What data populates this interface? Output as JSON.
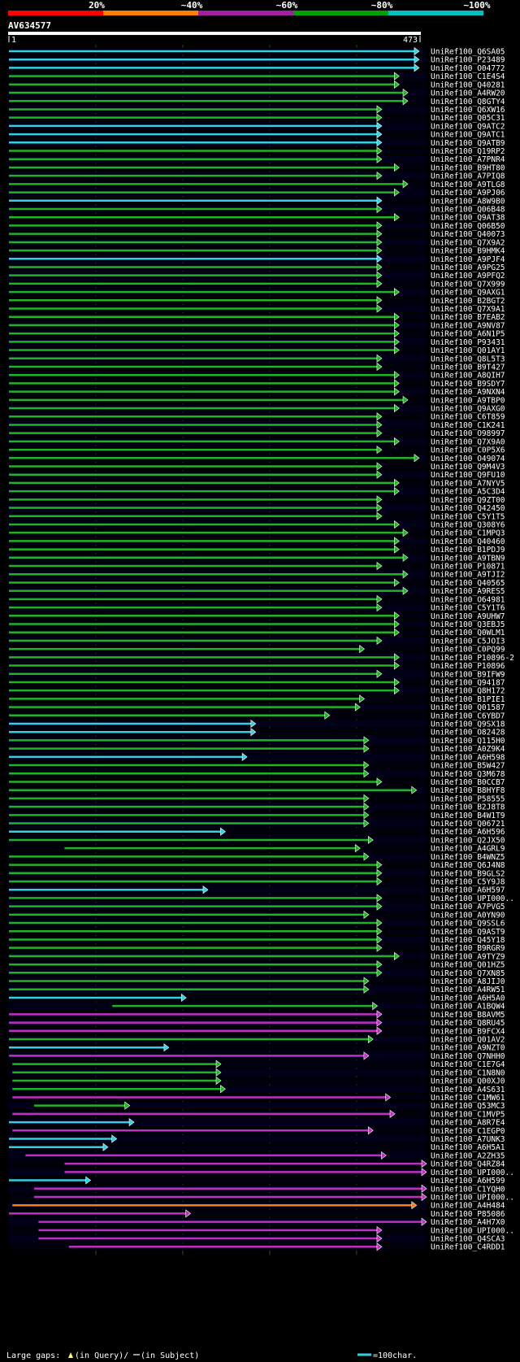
{
  "chart_data": {
    "type": "alignment-overview",
    "query_id": "AV634577",
    "query_start": "1",
    "query_end": "473",
    "query_length": 473,
    "identity_scale": [
      {
        "label": "20%",
        "color": "#ff0000"
      },
      {
        "label": "~40%",
        "color": "#ff7f00"
      },
      {
        "label": "~60%",
        "color": "#a020a0"
      },
      {
        "label": "~80%",
        "color": "#00a000"
      },
      {
        "label": "~100%",
        "color": "#00c0c0"
      }
    ],
    "hit_colors": {
      "cyan": "#33d0e0",
      "green": "#22b322",
      "magenta": "#c030c0",
      "orange": "#ff8000"
    },
    "hits": [
      {
        "name": "UniRef100_Q6SA05",
        "start": 1,
        "end": 473,
        "color": "cyan"
      },
      {
        "name": "UniRef100_P23489",
        "start": 1,
        "end": 473,
        "color": "cyan"
      },
      {
        "name": "UniRef100_O04772",
        "start": 1,
        "end": 473,
        "color": "cyan"
      },
      {
        "name": "UniRef100_C1E4S4",
        "start": 1,
        "end": 450,
        "color": "green"
      },
      {
        "name": "UniRef100_Q40281",
        "start": 1,
        "end": 450,
        "color": "green"
      },
      {
        "name": "UniRef100_A4RW20",
        "start": 1,
        "end": 460,
        "color": "green"
      },
      {
        "name": "UniRef100_Q8GTY4",
        "start": 1,
        "end": 460,
        "color": "green"
      },
      {
        "name": "UniRef100_Q6XW16",
        "start": 1,
        "end": 430,
        "color": "green"
      },
      {
        "name": "UniRef100_Q05C31",
        "start": 1,
        "end": 430,
        "color": "green"
      },
      {
        "name": "UniRef100_Q9ATC2",
        "start": 1,
        "end": 430,
        "color": "cyan"
      },
      {
        "name": "UniRef100_Q9ATC1",
        "start": 1,
        "end": 430,
        "color": "cyan"
      },
      {
        "name": "UniRef100_Q9ATB9",
        "start": 1,
        "end": 430,
        "color": "cyan"
      },
      {
        "name": "UniRef100_Q19RP2",
        "start": 1,
        "end": 430,
        "color": "green"
      },
      {
        "name": "UniRef100_A7PNR4",
        "start": 1,
        "end": 430,
        "color": "green"
      },
      {
        "name": "UniRef100_B9HT80",
        "start": 1,
        "end": 450,
        "color": "green"
      },
      {
        "name": "UniRef100_A7PIQ8",
        "start": 1,
        "end": 430,
        "color": "green"
      },
      {
        "name": "UniRef100_A9TLG8",
        "start": 1,
        "end": 460,
        "color": "green"
      },
      {
        "name": "UniRef100_A9PJ06",
        "start": 1,
        "end": 450,
        "color": "green"
      },
      {
        "name": "UniRef100_A8W9B0",
        "start": 1,
        "end": 430,
        "color": "cyan"
      },
      {
        "name": "UniRef100_Q06B48",
        "start": 1,
        "end": 430,
        "color": "green"
      },
      {
        "name": "UniRef100_Q9AT38",
        "start": 1,
        "end": 450,
        "color": "green"
      },
      {
        "name": "UniRef100_Q06B50",
        "start": 1,
        "end": 430,
        "color": "green"
      },
      {
        "name": "UniRef100_Q40073",
        "start": 1,
        "end": 430,
        "color": "green"
      },
      {
        "name": "UniRef100_Q7X9A2",
        "start": 1,
        "end": 430,
        "color": "green"
      },
      {
        "name": "UniRef100_B9HMK4",
        "start": 1,
        "end": 430,
        "color": "green"
      },
      {
        "name": "UniRef100_A9PJF4",
        "start": 1,
        "end": 430,
        "color": "cyan"
      },
      {
        "name": "UniRef100_A9PG25",
        "start": 1,
        "end": 430,
        "color": "green"
      },
      {
        "name": "UniRef100_A9PFQ2",
        "start": 1,
        "end": 430,
        "color": "green"
      },
      {
        "name": "UniRef100_Q7X999",
        "start": 1,
        "end": 430,
        "color": "green"
      },
      {
        "name": "UniRef100_Q9AXG1",
        "start": 1,
        "end": 450,
        "color": "green"
      },
      {
        "name": "UniRef100_B2BGT2",
        "start": 1,
        "end": 430,
        "color": "green"
      },
      {
        "name": "UniRef100_Q7X9A1",
        "start": 1,
        "end": 430,
        "color": "green"
      },
      {
        "name": "UniRef100_B7EAB2",
        "start": 1,
        "end": 450,
        "color": "green"
      },
      {
        "name": "UniRef100_A9NV87",
        "start": 1,
        "end": 450,
        "color": "green"
      },
      {
        "name": "UniRef100_A6N1P5",
        "start": 1,
        "end": 450,
        "color": "green"
      },
      {
        "name": "UniRef100_P93431",
        "start": 1,
        "end": 450,
        "color": "green"
      },
      {
        "name": "UniRef100_Q01AY1",
        "start": 1,
        "end": 450,
        "color": "green"
      },
      {
        "name": "UniRef100_Q8L5T3",
        "start": 1,
        "end": 430,
        "color": "green"
      },
      {
        "name": "UniRef100_B9T427",
        "start": 1,
        "end": 430,
        "color": "green"
      },
      {
        "name": "UniRef100_A8QIH7",
        "start": 1,
        "end": 450,
        "color": "green"
      },
      {
        "name": "UniRef100_B9SDY7",
        "start": 1,
        "end": 450,
        "color": "green"
      },
      {
        "name": "UniRef100_A9NXN4",
        "start": 1,
        "end": 450,
        "color": "green"
      },
      {
        "name": "UniRef100_A9TBP0",
        "start": 1,
        "end": 460,
        "color": "green"
      },
      {
        "name": "UniRef100_Q9AXG0",
        "start": 1,
        "end": 450,
        "color": "green"
      },
      {
        "name": "UniRef100_C6T859",
        "start": 1,
        "end": 430,
        "color": "green"
      },
      {
        "name": "UniRef100_C1K241",
        "start": 1,
        "end": 430,
        "color": "green"
      },
      {
        "name": "UniRef100_O98997",
        "start": 1,
        "end": 430,
        "color": "green"
      },
      {
        "name": "UniRef100_Q7X9A0",
        "start": 1,
        "end": 450,
        "color": "green"
      },
      {
        "name": "UniRef100_C0P5X6",
        "start": 1,
        "end": 430,
        "color": "green"
      },
      {
        "name": "UniRef100_O49074",
        "start": 1,
        "end": 473,
        "color": "green"
      },
      {
        "name": "UniRef100_Q9M4V3",
        "start": 1,
        "end": 430,
        "color": "green"
      },
      {
        "name": "UniRef100_Q9FU10",
        "start": 1,
        "end": 430,
        "color": "green"
      },
      {
        "name": "UniRef100_A7NYV5",
        "start": 1,
        "end": 450,
        "color": "green"
      },
      {
        "name": "UniRef100_A5C3D4",
        "start": 1,
        "end": 450,
        "color": "green"
      },
      {
        "name": "UniRef100_Q9ZT00",
        "start": 1,
        "end": 430,
        "color": "green"
      },
      {
        "name": "UniRef100_Q42450",
        "start": 1,
        "end": 430,
        "color": "green"
      },
      {
        "name": "UniRef100_C5Y1T5",
        "start": 1,
        "end": 430,
        "color": "green"
      },
      {
        "name": "UniRef100_Q308Y6",
        "start": 1,
        "end": 450,
        "color": "green"
      },
      {
        "name": "UniRef100_C1MPQ3",
        "start": 1,
        "end": 460,
        "color": "green"
      },
      {
        "name": "UniRef100_Q40460",
        "start": 1,
        "end": 450,
        "color": "green"
      },
      {
        "name": "UniRef100_B1PDJ9",
        "start": 1,
        "end": 450,
        "color": "green"
      },
      {
        "name": "UniRef100_A9TBN9",
        "start": 1,
        "end": 460,
        "color": "green"
      },
      {
        "name": "UniRef100_P10871",
        "start": 1,
        "end": 430,
        "color": "green"
      },
      {
        "name": "UniRef100_A9TJI2",
        "start": 1,
        "end": 460,
        "color": "green"
      },
      {
        "name": "UniRef100_Q40565",
        "start": 1,
        "end": 450,
        "color": "green"
      },
      {
        "name": "UniRef100_A9RES5",
        "start": 1,
        "end": 460,
        "color": "green"
      },
      {
        "name": "UniRef100_O64981",
        "start": 1,
        "end": 430,
        "color": "green"
      },
      {
        "name": "UniRef100_C5Y1T6",
        "start": 1,
        "end": 430,
        "color": "green"
      },
      {
        "name": "UniRef100_A9UHW7",
        "start": 1,
        "end": 450,
        "color": "green"
      },
      {
        "name": "UniRef100_Q3EBJ5",
        "start": 1,
        "end": 450,
        "color": "green"
      },
      {
        "name": "UniRef100_Q0WLM1",
        "start": 1,
        "end": 450,
        "color": "green"
      },
      {
        "name": "UniRef100_C5JOI3",
        "start": 1,
        "end": 430,
        "color": "green"
      },
      {
        "name": "UniRef100_C0PQ99",
        "start": 1,
        "end": 410,
        "color": "green"
      },
      {
        "name": "UniRef100_P10896-2",
        "start": 1,
        "end": 450,
        "color": "green"
      },
      {
        "name": "UniRef100_P10896",
        "start": 1,
        "end": 450,
        "color": "green"
      },
      {
        "name": "UniRef100_B9IFW9",
        "start": 1,
        "end": 430,
        "color": "green"
      },
      {
        "name": "UniRef100_Q94187",
        "start": 1,
        "end": 450,
        "color": "green"
      },
      {
        "name": "UniRef100_Q8H172",
        "start": 1,
        "end": 450,
        "color": "green"
      },
      {
        "name": "UniRef100_B1PIE1",
        "start": 1,
        "end": 410,
        "color": "green"
      },
      {
        "name": "UniRef100_Q01587",
        "start": 1,
        "end": 405,
        "color": "green"
      },
      {
        "name": "UniRef100_C6YBD7",
        "start": 1,
        "end": 370,
        "color": "green"
      },
      {
        "name": "UniRef100_Q9SX18",
        "start": 1,
        "end": 285,
        "color": "cyan"
      },
      {
        "name": "UniRef100_O82428",
        "start": 1,
        "end": 285,
        "color": "cyan"
      },
      {
        "name": "UniRef100_Q115H0",
        "start": 1,
        "end": 415,
        "color": "green"
      },
      {
        "name": "UniRef100_A0Z9K4",
        "start": 1,
        "end": 415,
        "color": "green"
      },
      {
        "name": "UniRef100_A6H598",
        "start": 1,
        "end": 275,
        "color": "cyan"
      },
      {
        "name": "UniRef100_B5W427",
        "start": 1,
        "end": 415,
        "color": "green"
      },
      {
        "name": "UniRef100_Q3M678",
        "start": 1,
        "end": 415,
        "color": "green"
      },
      {
        "name": "UniRef100_B0CCB7",
        "start": 1,
        "end": 430,
        "color": "green"
      },
      {
        "name": "UniRef100_B8HYF8",
        "start": 1,
        "end": 470,
        "color": "green"
      },
      {
        "name": "UniRef100_P58555",
        "start": 1,
        "end": 415,
        "color": "green"
      },
      {
        "name": "UniRef100_B2J8T8",
        "start": 1,
        "end": 415,
        "color": "green"
      },
      {
        "name": "UniRef100_B4W1T9",
        "start": 1,
        "end": 415,
        "color": "green"
      },
      {
        "name": "UniRef100_Q06721",
        "start": 1,
        "end": 415,
        "color": "green"
      },
      {
        "name": "UniRef100_A6H596",
        "start": 1,
        "end": 250,
        "color": "cyan"
      },
      {
        "name": "UniRef100_Q2JX50",
        "start": 1,
        "end": 420,
        "color": "green"
      },
      {
        "name": "UniRef100_A4GRL9",
        "start": 65,
        "end": 405,
        "color": "green"
      },
      {
        "name": "UniRef100_B4WNZ5",
        "start": 1,
        "end": 415,
        "color": "green"
      },
      {
        "name": "UniRef100_Q6J4N8",
        "start": 1,
        "end": 430,
        "color": "green"
      },
      {
        "name": "UniRef100_B9GLS2",
        "start": 1,
        "end": 430,
        "color": "green"
      },
      {
        "name": "UniRef100_C5Y9J8",
        "start": 1,
        "end": 430,
        "color": "green"
      },
      {
        "name": "UniRef100_A6H597",
        "start": 1,
        "end": 230,
        "color": "cyan"
      },
      {
        "name": "UniRef100_UPI000..",
        "start": 1,
        "end": 430,
        "color": "green"
      },
      {
        "name": "UniRef100_A7PVG5",
        "start": 1,
        "end": 430,
        "color": "green"
      },
      {
        "name": "UniRef100_A0YN90",
        "start": 1,
        "end": 415,
        "color": "green"
      },
      {
        "name": "UniRef100_Q9SSL6",
        "start": 1,
        "end": 430,
        "color": "green"
      },
      {
        "name": "UniRef100_Q9AST9",
        "start": 1,
        "end": 430,
        "color": "green"
      },
      {
        "name": "UniRef100_Q45Y18",
        "start": 1,
        "end": 430,
        "color": "green"
      },
      {
        "name": "UniRef100_B9RGR9",
        "start": 1,
        "end": 430,
        "color": "green"
      },
      {
        "name": "UniRef100_A9TYZ9",
        "start": 1,
        "end": 450,
        "color": "green"
      },
      {
        "name": "UniRef100_Q01HZ5",
        "start": 1,
        "end": 430,
        "color": "green"
      },
      {
        "name": "UniRef100_Q7XN85",
        "start": 1,
        "end": 430,
        "color": "green"
      },
      {
        "name": "UniRef100_A8JIJ0",
        "start": 1,
        "end": 415,
        "color": "green"
      },
      {
        "name": "UniRef100_A4RW51",
        "start": 1,
        "end": 415,
        "color": "green"
      },
      {
        "name": "UniRef100_A6H5A0",
        "start": 1,
        "end": 205,
        "color": "cyan"
      },
      {
        "name": "UniRef100_A1BQW4",
        "start": 120,
        "end": 425,
        "color": "green"
      },
      {
        "name": "UniRef100_B8AVM5",
        "start": 1,
        "end": 430,
        "color": "magenta"
      },
      {
        "name": "UniRef100_Q8RU45",
        "start": 1,
        "end": 430,
        "color": "magenta"
      },
      {
        "name": "UniRef100_B9FCX4",
        "start": 1,
        "end": 430,
        "color": "magenta"
      },
      {
        "name": "UniRef100_Q01AV2",
        "start": 1,
        "end": 420,
        "color": "green"
      },
      {
        "name": "UniRef100_A9NZT0",
        "start": 1,
        "end": 185,
        "color": "cyan"
      },
      {
        "name": "UniRef100_Q7NHH0",
        "start": 1,
        "end": 415,
        "color": "magenta"
      },
      {
        "name": "UniRef100_C1E7G4",
        "start": 5,
        "end": 245,
        "color": "green"
      },
      {
        "name": "UniRef100_C1N8N0",
        "start": 5,
        "end": 245,
        "color": "green"
      },
      {
        "name": "UniRef100_Q00XJ0",
        "start": 5,
        "end": 245,
        "color": "green"
      },
      {
        "name": "UniRef100_A4S631",
        "start": 5,
        "end": 250,
        "color": "green"
      },
      {
        "name": "UniRef100_C1MW61",
        "start": 5,
        "end": 440,
        "color": "magenta"
      },
      {
        "name": "UniRef100_Q53MC3",
        "start": 30,
        "end": 140,
        "color": "green"
      },
      {
        "name": "UniRef100_C1MVP5",
        "start": 5,
        "end": 445,
        "color": "magenta"
      },
      {
        "name": "UniRef100_A8R7E4",
        "start": 1,
        "end": 145,
        "color": "cyan"
      },
      {
        "name": "UniRef100_C1EGP0",
        "start": 5,
        "end": 420,
        "color": "magenta"
      },
      {
        "name": "UniRef100_A7UNK3",
        "start": 1,
        "end": 125,
        "color": "cyan"
      },
      {
        "name": "UniRef100_A6H5A1",
        "start": 1,
        "end": 115,
        "color": "cyan"
      },
      {
        "name": "UniRef100_A2ZH35",
        "start": 20,
        "end": 435,
        "color": "magenta"
      },
      {
        "name": "UniRef100_Q4RZ84",
        "start": 65,
        "end": 500,
        "color": "magenta"
      },
      {
        "name": "UniRef100_UPI000..",
        "start": 65,
        "end": 500,
        "color": "magenta"
      },
      {
        "name": "UniRef100_A6H599",
        "start": 1,
        "end": 95,
        "color": "cyan"
      },
      {
        "name": "UniRef100_C1YQH0",
        "start": 30,
        "end": 485,
        "color": "magenta"
      },
      {
        "name": "UniRef100_UPI000..",
        "start": 30,
        "end": 495,
        "color": "magenta"
      },
      {
        "name": "UniRef100_A4H484",
        "start": 5,
        "end": 470,
        "color": "orange"
      },
      {
        "name": "UniRef100_P85086",
        "start": 1,
        "end": 210,
        "color": "magenta"
      },
      {
        "name": "UniRef100_A4H7X0",
        "start": 35,
        "end": 505,
        "color": "magenta"
      },
      {
        "name": "UniRef100_UPI000..",
        "start": 35,
        "end": 430,
        "color": "magenta"
      },
      {
        "name": "UniRef100_Q4SCA3",
        "start": 35,
        "end": 430,
        "color": "magenta"
      },
      {
        "name": "UniRef100_C4RDD1",
        "start": 70,
        "end": 430,
        "color": "magenta"
      }
    ],
    "legend": {
      "large_gaps_label": "Large gaps:",
      "in_query_label": "(in Query)/",
      "in_subject_label": "(in Subject)",
      "scale_label": "=100char."
    }
  }
}
